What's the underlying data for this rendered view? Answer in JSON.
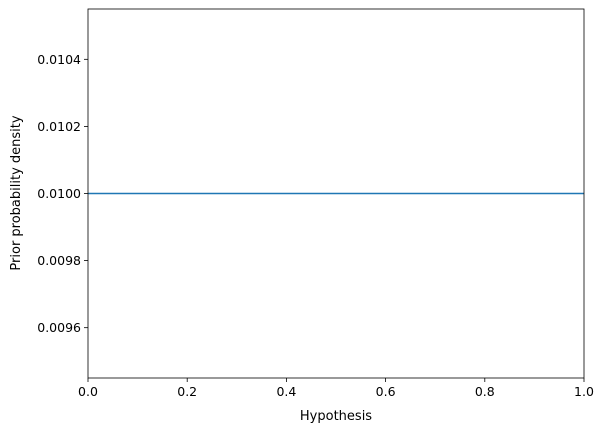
{
  "chart_data": {
    "type": "line",
    "title": "",
    "xlabel": "Hypothesis",
    "ylabel": "Prior probability density",
    "xlim": [
      0.0,
      1.0
    ],
    "ylim": [
      0.00945,
      0.01055
    ],
    "xticks": [
      "0.0",
      "0.2",
      "0.4",
      "0.6",
      "0.8",
      "1.0"
    ],
    "yticks": [
      "0.0096",
      "0.0098",
      "0.0100",
      "0.0102",
      "0.0104"
    ],
    "grid": false,
    "series": [
      {
        "x": [
          0.0,
          1.0
        ],
        "y": [
          0.01,
          0.01
        ],
        "color": "#1f77b4"
      }
    ]
  }
}
